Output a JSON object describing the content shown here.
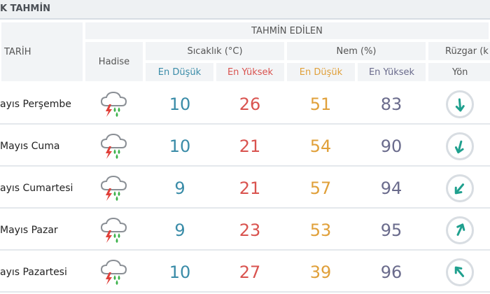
{
  "title": "K TAHMİN",
  "header": {
    "tarih": "TARİH",
    "tahmin_edilen": "TAHMİN EDİLEN",
    "hadise": "Hadise",
    "sicaklik": "Sıcaklık (°C)",
    "nem": "Nem (%)",
    "ruzgar": "Rüzgar (k",
    "en_dusuk": "En Düşük",
    "en_yuksek": "En Yüksek",
    "yon": "Yön"
  },
  "colors": {
    "temp_min": "#3a8ca8",
    "temp_max": "#d9534f",
    "hum_min": "#e0a03a",
    "hum_max": "#6a6b8c",
    "arrow": "#1fa08e"
  },
  "rows": [
    {
      "date": "ayıs Perşembe",
      "icon": "thunderstorm-rain-icon",
      "temp_min": "10",
      "temp_max": "26",
      "hum_min": "51",
      "hum_max": "83",
      "wind_dir_deg": 175
    },
    {
      "date": "Mayıs Cuma",
      "icon": "thunderstorm-rain-icon",
      "temp_min": "10",
      "temp_max": "21",
      "hum_min": "54",
      "hum_max": "90",
      "wind_dir_deg": 195
    },
    {
      "date": "ayıs Cumartesi",
      "icon": "thunderstorm-rain-icon",
      "temp_min": "9",
      "temp_max": "21",
      "hum_min": "57",
      "hum_max": "94",
      "wind_dir_deg": 220
    },
    {
      "date": "Mayıs Pazar",
      "icon": "thunderstorm-rain-icon",
      "temp_min": "9",
      "temp_max": "23",
      "hum_min": "53",
      "hum_max": "95",
      "wind_dir_deg": 25
    },
    {
      "date": "ayıs Pazartesi",
      "icon": "thunderstorm-rain-icon",
      "temp_min": "10",
      "temp_max": "27",
      "hum_min": "39",
      "hum_max": "96",
      "wind_dir_deg": 320
    }
  ]
}
